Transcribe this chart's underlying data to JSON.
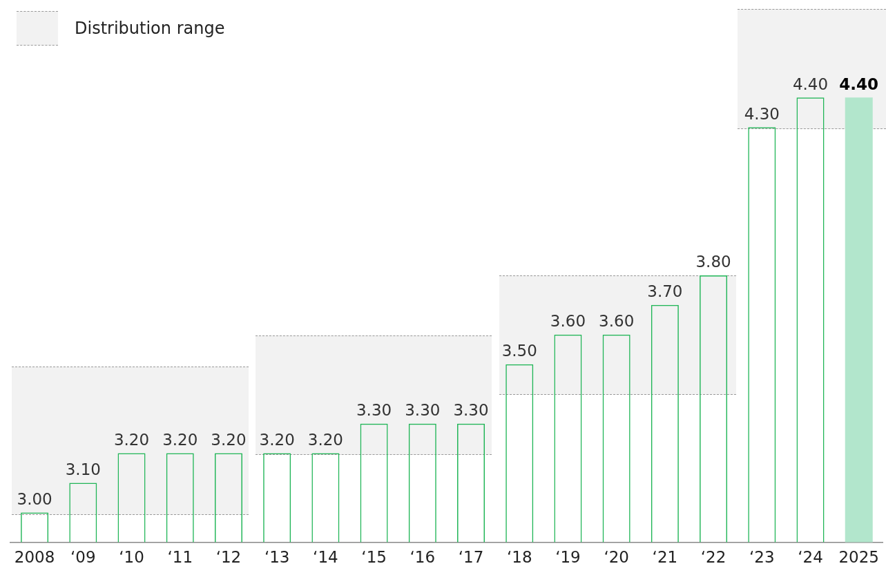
{
  "chart_data": {
    "type": "bar",
    "categories": [
      "2008",
      "‘09",
      "‘10",
      "‘11",
      "‘12",
      "‘13",
      "‘14",
      "‘15",
      "‘16",
      "‘17",
      "‘18",
      "‘19",
      "‘20",
      "‘21",
      "‘22",
      "‘23",
      "‘24",
      "2025"
    ],
    "series": [
      {
        "color": "#1fb556",
        "values": [
          3.0,
          3.1,
          3.2,
          3.2,
          3.2,
          3.2,
          3.2,
          3.3,
          3.3,
          3.3,
          3.5,
          3.6,
          3.6,
          3.7,
          3.8,
          4.3,
          4.4,
          4.4
        ],
        "colors": [
          null,
          null,
          null,
          null,
          null,
          null,
          null,
          null,
          null,
          null,
          null,
          null,
          null,
          null,
          null,
          null,
          null,
          "#b2e6cc"
        ],
        "value_labels": [
          "3.00",
          "3.10",
          "3.20",
          "3.20",
          "3.20",
          "3.20",
          "3.20",
          "3.30",
          "3.30",
          "3.30",
          "3.50",
          "3.60",
          "3.60",
          "3.70",
          "3.80",
          "4.30",
          "4.40",
          "4.40"
        ]
      }
    ],
    "tick_labels": "x",
    "annotations": [
      "Distribution range"
    ]
  }
}
